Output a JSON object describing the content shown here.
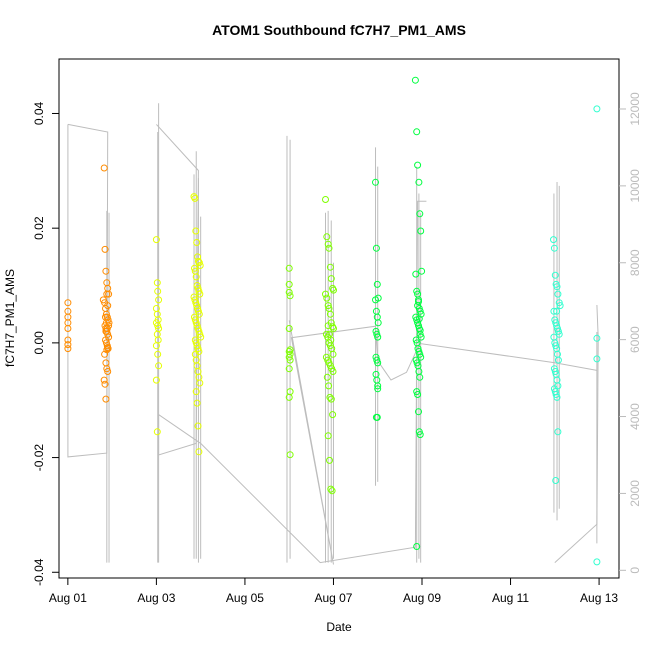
{
  "chart_data": {
    "type": "scatter",
    "title": "ATOM1 Southbound fC7H7_PM1_AMS",
    "xlabel": "Date",
    "ylabel": "fC7H7_PM1_AMS",
    "x_unit": "day of August",
    "xlim": [
      0.8,
      13.45
    ],
    "ylim": [
      -0.041,
      0.0495
    ],
    "y2lim": [
      -200,
      13300
    ],
    "x_ticks": [
      1,
      3,
      5,
      7,
      9,
      11,
      13
    ],
    "x_tick_labels": [
      "Aug 01",
      "Aug 03",
      "Aug 05",
      "Aug 07",
      "Aug 09",
      "Aug 11",
      "Aug 13"
    ],
    "y_ticks": [
      -0.04,
      -0.02,
      0.0,
      0.02,
      0.04
    ],
    "y_tick_labels": [
      "-0.04",
      "-0.02",
      "0.00",
      "0.02",
      "0.04"
    ],
    "y2_ticks": [
      0,
      2000,
      4000,
      6000,
      8000,
      10000,
      12000
    ],
    "y2_tick_labels": [
      "0",
      "2000",
      "4000",
      "6000",
      "8000",
      "10000",
      "12000"
    ],
    "grid": false,
    "legend": "none",
    "colors": {
      "line": "#bdbdbd",
      "series": [
        "#ff8c00",
        "#ffa500",
        "#e6ff00",
        "#7fff00",
        "#00ff40",
        "#00ff7f",
        "#33ffd0"
      ]
    },
    "track_line": [
      [
        1.0,
        11600
      ],
      [
        1.9,
        11400
      ],
      [
        1.88,
        3050
      ],
      [
        1.0,
        2950
      ],
      [
        1.0,
        11600
      ]
    ],
    "track_line_2": [
      [
        3.0,
        11600
      ],
      [
        3.95,
        10400
      ],
      [
        3.9,
        3300
      ],
      [
        3.05,
        3000
      ],
      [
        3.05,
        4050
      ],
      [
        4.0,
        3300
      ],
      [
        6.7,
        200
      ],
      [
        8.85,
        600
      ],
      [
        8.9,
        9600
      ],
      [
        9.1,
        9600
      ]
    ],
    "track_line_3": [
      [
        6.0,
        6500
      ],
      [
        7.0,
        150
      ],
      [
        6.05,
        6050
      ],
      [
        7.95,
        6350
      ],
      [
        8.0,
        5450
      ],
      [
        8.3,
        4950
      ],
      [
        8.65,
        5150
      ],
      [
        8.95,
        5900
      ],
      [
        12.0,
        5400
      ],
      [
        12.95,
        5200
      ]
    ],
    "track_line_4": [
      [
        12.0,
        200
      ],
      [
        12.95,
        1200
      ],
      [
        12.98,
        6050
      ],
      [
        12.95,
        6900
      ]
    ],
    "vertical_spikes": [
      {
        "x": 1.88,
        "low": 200,
        "high": 9350
      },
      {
        "x": 1.93,
        "low": 200,
        "high": 9300
      },
      {
        "x": 3.03,
        "low": 200,
        "high": 11400
      },
      {
        "x": 3.05,
        "low": 200,
        "high": 12150
      },
      {
        "x": 3.85,
        "low": 300,
        "high": 10300
      },
      {
        "x": 3.9,
        "low": 300,
        "high": 10900
      },
      {
        "x": 3.95,
        "low": 200,
        "high": 10200
      },
      {
        "x": 4.0,
        "low": 300,
        "high": 9200
      },
      {
        "x": 5.95,
        "low": 200,
        "high": 11300
      },
      {
        "x": 6.02,
        "low": 300,
        "high": 11200
      },
      {
        "x": 6.82,
        "low": 200,
        "high": 9300
      },
      {
        "x": 6.88,
        "low": 200,
        "high": 9350
      },
      {
        "x": 6.95,
        "low": 200,
        "high": 9100
      },
      {
        "x": 7.0,
        "low": 300,
        "high": 8000
      },
      {
        "x": 7.95,
        "low": 2200,
        "high": 11000
      },
      {
        "x": 8.0,
        "low": 2300,
        "high": 10500
      },
      {
        "x": 8.88,
        "low": 200,
        "high": 10500
      },
      {
        "x": 8.93,
        "low": 300,
        "high": 9800
      },
      {
        "x": 8.97,
        "low": 200,
        "high": 9300
      },
      {
        "x": 11.98,
        "low": 1500,
        "high": 9800
      },
      {
        "x": 12.05,
        "low": 1300,
        "high": 10100
      },
      {
        "x": 12.1,
        "low": 1600,
        "high": 10000
      },
      {
        "x": 12.95,
        "low": 700,
        "high": 6200
      }
    ],
    "series": [
      {
        "color": "#ff8c00",
        "x": [
          1.0,
          1.0,
          1.0,
          1.0,
          1.0,
          1.0,
          1.0,
          1.0,
          1.82,
          1.84,
          1.86,
          1.88,
          1.9,
          1.92,
          1.8,
          1.83,
          1.85,
          1.87,
          1.89,
          1.91,
          1.93,
          1.84,
          1.86,
          1.88,
          1.9,
          1.92,
          1.85,
          1.87,
          1.89,
          1.91,
          1.83,
          1.86,
          1.88,
          1.9,
          1.82,
          1.84,
          1.86,
          1.88,
          1.9,
          1.92,
          1.85,
          1.87,
          1.89,
          1.86,
          1.88,
          1.9
        ],
        "y": [
          0.007,
          0.0055,
          0.0045,
          0.0035,
          0.0025,
          0.0005,
          -0.0003,
          -0.001,
          0.0305,
          0.0163,
          0.0125,
          0.0105,
          0.0095,
          0.0085,
          0.0075,
          0.007,
          0.006,
          0.005,
          0.0045,
          0.004,
          0.0035,
          0.003,
          0.0025,
          0.002,
          0.0015,
          0.001,
          0.0005,
          0.0,
          -0.0005,
          -0.001,
          -0.002,
          -0.0035,
          -0.0045,
          -0.005,
          -0.0065,
          -0.0072,
          -0.0098,
          0.0085,
          0.0065,
          0.003,
          0.0045,
          0.0035,
          0.0025,
          0.002,
          -0.0012,
          -0.0008
        ]
      },
      {
        "color": "#e6ff00",
        "x": [
          3.0,
          3.02,
          3.03,
          3.05,
          3.0,
          3.02,
          3.04,
          3.0,
          3.03,
          3.05,
          3.02,
          3.04,
          3.0,
          3.03,
          3.05,
          3.0,
          3.02,
          3.85,
          3.87,
          3.89,
          3.91,
          3.93,
          3.95,
          3.97,
          3.99,
          3.86,
          3.88,
          3.9,
          3.92,
          3.94,
          3.96,
          3.98,
          3.85,
          3.87,
          3.89,
          3.91,
          3.93,
          3.95,
          3.97,
          3.86,
          3.88,
          3.9,
          3.92,
          3.94,
          3.96,
          3.98,
          4.0,
          3.88,
          3.9,
          3.92,
          3.94,
          3.96,
          3.88,
          3.9,
          3.92,
          3.94,
          3.96,
          3.98,
          3.9,
          3.92,
          3.94,
          3.96
        ],
        "y": [
          0.018,
          0.0105,
          0.009,
          0.0075,
          0.006,
          0.005,
          0.004,
          0.0035,
          0.003,
          0.0025,
          0.0015,
          0.0005,
          -0.0005,
          -0.002,
          -0.004,
          -0.0065,
          -0.0155,
          0.0255,
          0.0252,
          0.0195,
          0.0175,
          0.015,
          0.0142,
          0.014,
          0.0135,
          0.013,
          0.0125,
          0.0115,
          0.01,
          0.0095,
          0.009,
          0.0085,
          0.008,
          0.0075,
          0.007,
          0.0065,
          0.006,
          0.0055,
          0.005,
          0.0045,
          0.004,
          0.0035,
          0.003,
          0.0025,
          0.002,
          0.0015,
          0.001,
          0.0005,
          0.0,
          -0.0005,
          -0.001,
          -0.0015,
          -0.002,
          -0.003,
          -0.004,
          -0.005,
          -0.006,
          -0.007,
          -0.0085,
          -0.0105,
          -0.0145,
          -0.019
        ]
      },
      {
        "color": "#7fff00",
        "x": [
          6.0,
          6.0,
          6.0,
          6.02,
          6.0,
          6.02,
          6.0,
          6.02,
          6.0,
          6.02,
          6.0,
          6.02,
          6.0,
          6.02,
          6.82,
          6.85,
          6.88,
          6.9,
          6.93,
          6.95,
          6.98,
          7.0,
          6.82,
          6.85,
          6.88,
          6.9,
          6.93,
          6.95,
          6.98,
          7.0,
          6.84,
          6.87,
          6.9,
          6.93,
          6.96,
          6.99,
          6.84,
          6.87,
          6.9,
          6.93,
          6.96,
          6.99,
          6.86,
          6.89,
          6.92,
          6.95,
          6.98,
          6.88,
          6.91,
          6.94,
          6.97,
          6.88,
          6.91,
          6.94
        ],
        "y": [
          0.013,
          0.0102,
          0.0088,
          0.0082,
          0.0025,
          -0.0012,
          -0.0015,
          -0.002,
          -0.0025,
          -0.003,
          -0.0045,
          -0.0085,
          -0.0095,
          -0.0195,
          0.025,
          0.0185,
          0.0172,
          0.0165,
          0.0132,
          0.0112,
          0.0095,
          0.0092,
          0.0085,
          0.0078,
          0.0065,
          0.006,
          0.005,
          0.0035,
          0.0028,
          0.0025,
          0.0015,
          0.001,
          0.0,
          -0.0005,
          -0.001,
          -0.002,
          -0.0025,
          -0.003,
          -0.0035,
          -0.004,
          -0.0045,
          -0.005,
          -0.006,
          -0.0075,
          -0.0095,
          -0.0098,
          -0.0125,
          -0.0162,
          -0.0205,
          -0.0255,
          -0.0258,
          0.003,
          0.0015,
          0.0005
        ]
      },
      {
        "color": "#00ff40",
        "x": [
          7.95,
          7.97,
          7.99,
          8.01,
          7.95,
          7.97,
          7.99,
          8.01,
          7.96,
          7.98,
          8.0,
          7.96,
          7.98,
          8.0,
          7.96,
          7.98,
          8.0,
          7.97,
          7.99,
          8.0,
          8.85,
          8.88,
          8.9,
          8.93,
          8.95,
          8.97,
          8.99,
          8.86,
          8.88,
          8.9,
          8.92,
          8.94,
          8.96,
          8.98,
          8.86,
          8.88,
          8.9,
          8.92,
          8.94,
          8.96,
          8.98,
          8.87,
          8.89,
          8.91,
          8.93,
          8.95,
          8.97,
          8.87,
          8.89,
          8.91,
          8.93,
          8.95,
          8.88,
          8.9,
          8.92,
          8.94,
          8.96,
          8.88,
          8.9,
          8.92,
          8.94,
          8.96
        ],
        "y": [
          0.028,
          0.0165,
          0.0102,
          0.0078,
          0.0075,
          0.0055,
          0.0045,
          0.0035,
          0.002,
          0.0015,
          0.001,
          -0.0025,
          -0.003,
          -0.0035,
          -0.0055,
          -0.0065,
          -0.008,
          -0.013,
          -0.013,
          -0.0075,
          0.0458,
          0.0368,
          0.031,
          0.028,
          0.0225,
          0.0195,
          0.0125,
          0.012,
          0.009,
          0.0085,
          0.0075,
          0.006,
          0.0055,
          0.005,
          0.0045,
          0.004,
          0.0035,
          0.003,
          0.0025,
          0.0015,
          0.001,
          0.0005,
          0.0,
          -0.001,
          -0.0015,
          -0.002,
          -0.0025,
          -0.003,
          -0.0035,
          -0.004,
          -0.005,
          -0.006,
          -0.0085,
          -0.009,
          -0.012,
          -0.0155,
          -0.016,
          -0.0355,
          0.0065,
          0.0072,
          0.0042,
          0.0022
        ]
      },
      {
        "color": "#33ffd0",
        "x": [
          11.97,
          11.99,
          12.01,
          12.03,
          12.05,
          12.07,
          12.1,
          12.12,
          11.98,
          12.0,
          12.02,
          12.04,
          12.06,
          12.08,
          12.1,
          11.98,
          12.0,
          12.02,
          12.04,
          12.06,
          12.08,
          11.99,
          12.01,
          12.03,
          12.05,
          12.07,
          11.99,
          12.01,
          12.03,
          12.05,
          12.07,
          12.02,
          12.04,
          12.95,
          12.95,
          12.95,
          12.95
        ],
        "y": [
          0.018,
          0.0165,
          0.0118,
          0.0102,
          0.0098,
          0.0085,
          0.007,
          0.0065,
          0.0055,
          0.004,
          0.0035,
          0.003,
          0.0025,
          0.002,
          0.0015,
          0.001,
          0.0,
          -0.0005,
          -0.001,
          -0.002,
          -0.003,
          -0.0045,
          -0.005,
          -0.0055,
          -0.0065,
          -0.0075,
          -0.008,
          -0.0085,
          -0.009,
          -0.0095,
          -0.0155,
          -0.024,
          0.0055,
          0.0408,
          0.0008,
          -0.0028,
          -0.0382
        ]
      }
    ]
  }
}
